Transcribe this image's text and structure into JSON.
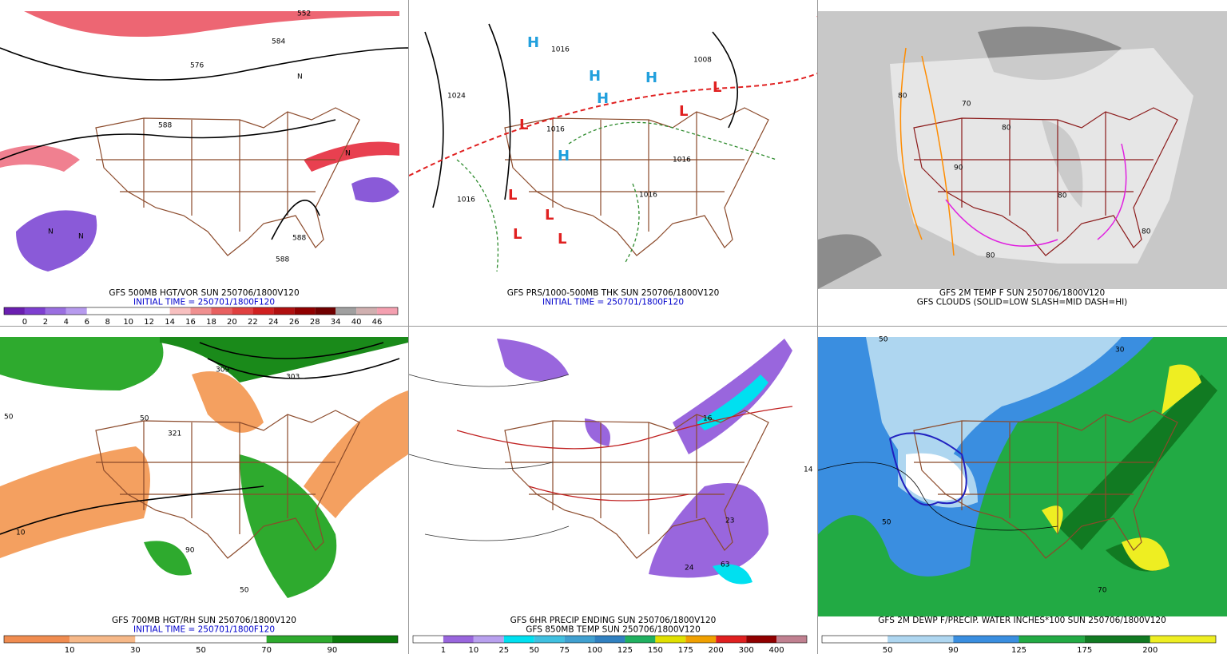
{
  "panels": [
    {
      "caption": [
        "GFS 500MB HGT/VOR SUN 250706/1800V120",
        "INITIAL TIME = 250701/1800F120"
      ],
      "caption_colors": [
        "#000",
        "#0000cc"
      ],
      "colorbar": {
        "labels": [
          0,
          2,
          4,
          6,
          8,
          10,
          12,
          14,
          16,
          18,
          20,
          22,
          24,
          26,
          28,
          34,
          40,
          46
        ],
        "colors": [
          "#6a1fb0",
          "#7e3fd0",
          "#9a6fe0",
          "#b79bee",
          "#fff",
          "#fff",
          "#fff",
          "#fff",
          "#f8c0c0",
          "#f09090",
          "#e86060",
          "#e04040",
          "#d02020",
          "#b01010",
          "#900000",
          "#700000",
          "#a0a0a0",
          "#d0b0b0",
          "#f4a0b0"
        ]
      },
      "map_labels": [
        "552",
        "584",
        "576",
        "588",
        "588",
        "588",
        "N",
        "N",
        "N",
        "N"
      ]
    },
    {
      "caption": [
        "GFS PRS/1000-500MB THK SUN 250706/1800V120",
        "INITIAL TIME = 250701/1800F120"
      ],
      "caption_colors": [
        "#000",
        "#0000cc"
      ],
      "map_labels": [
        "1016",
        "1016",
        "1024",
        "1016",
        "1016",
        "1016",
        "1008",
        "H",
        "H",
        "H",
        "H",
        "H",
        "L",
        "L",
        "L",
        "L",
        "L",
        "L",
        "L"
      ]
    },
    {
      "caption": [
        "GFS 2M TEMP F SUN 250706/1800V120",
        "GFS CLOUDS (SOLID=LOW SLASH=MID DASH=HI)"
      ],
      "caption_colors": [
        "#000",
        "#000"
      ],
      "map_labels": [
        "80",
        "80",
        "90",
        "80",
        "70",
        "80",
        "80"
      ]
    },
    {
      "caption": [
        "GFS 700MB HGT/RH SUN 250706/1800V120",
        "INITIAL TIME = 250701/1800F120"
      ],
      "caption_colors": [
        "#000",
        "#0000cc"
      ],
      "colorbar": {
        "labels": [
          10,
          30,
          50,
          70,
          90
        ],
        "colors": [
          "#f08c50",
          "#f6b888",
          "#fff",
          "#fff",
          "#2eaa2e",
          "#0d7a0d"
        ]
      },
      "map_labels": [
        "309",
        "303",
        "321",
        "50",
        "50",
        "90",
        "10",
        "50"
      ]
    },
    {
      "caption": [
        "GFS 6HR PRECIP ENDING SUN 250706/1800V120",
        "GFS 850MB TEMP SUN 250706/1800V120"
      ],
      "caption_colors": [
        "#000",
        "#000"
      ],
      "colorbar": {
        "labels": [
          1,
          10,
          25,
          50,
          75,
          100,
          125,
          150,
          175,
          200,
          300,
          400
        ],
        "colors": [
          "#fff",
          "#9966dd",
          "#b8a0ee",
          "#00e0f0",
          "#40c0e0",
          "#40a0d0",
          "#3080c0",
          "#20b060",
          "#e0e000",
          "#f0a000",
          "#e02020",
          "#900000",
          "#c08090"
        ]
      },
      "map_labels": [
        "24",
        "63",
        "23",
        "14",
        "16"
      ]
    },
    {
      "caption": [
        "GFS 2M DEWP F/PRECIP. WATER INCHES*100 SUN 250706/1800V120"
      ],
      "caption_colors": [
        "#000"
      ],
      "colorbar": {
        "labels": [
          50,
          90,
          125,
          175,
          200
        ],
        "colors": [
          "#fff",
          "#aed6f0",
          "#3a8ee0",
          "#22aa44",
          "#117a22",
          "#eeee22"
        ]
      },
      "map_labels": [
        "50",
        "30",
        "50",
        "70"
      ]
    }
  ]
}
